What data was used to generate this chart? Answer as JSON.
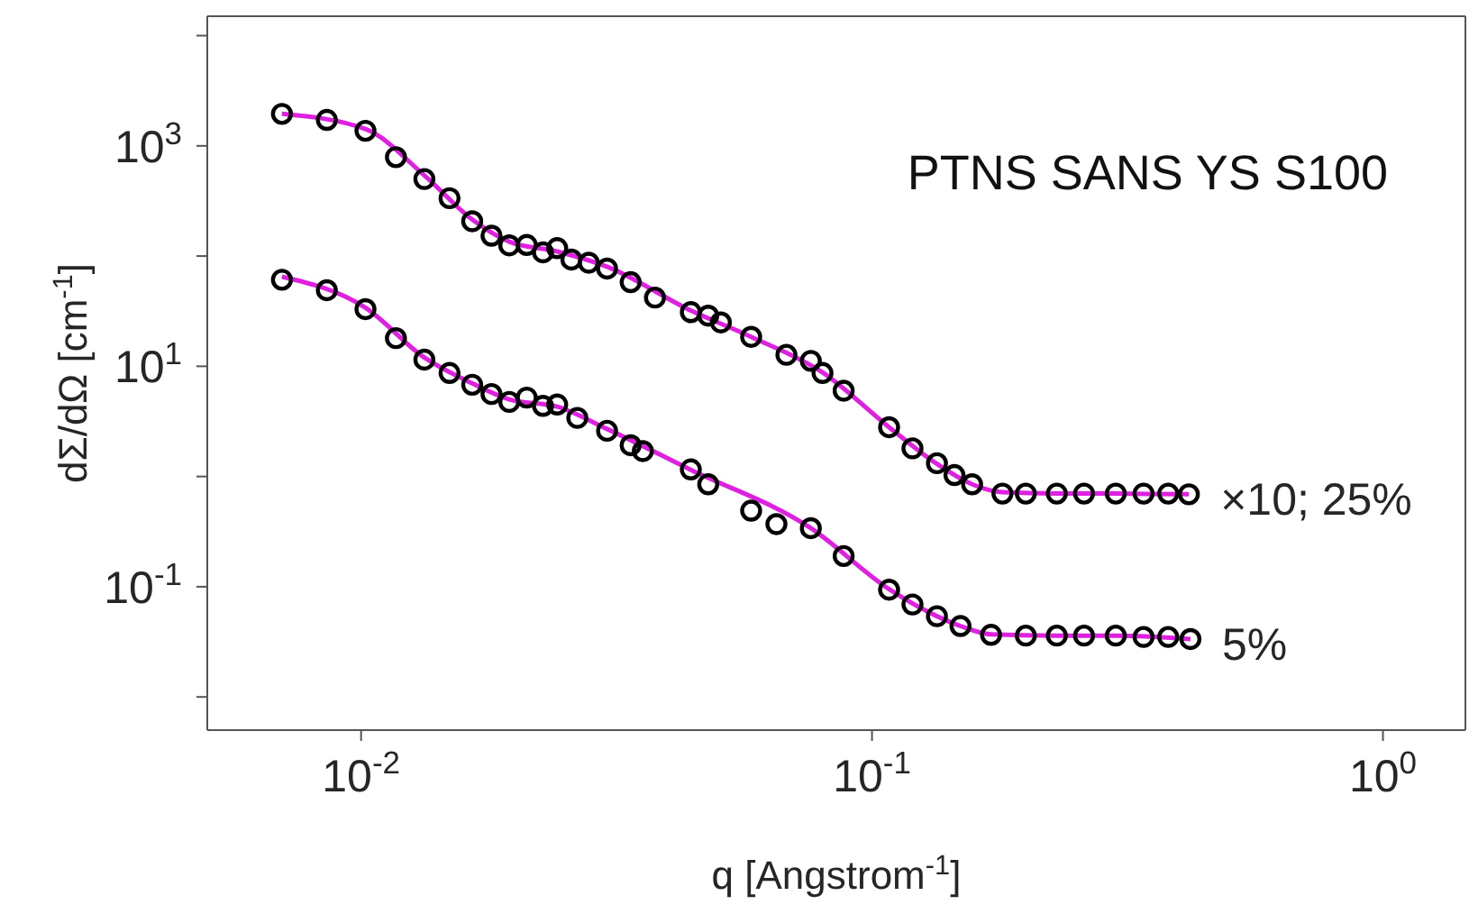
{
  "chart_data": {
    "type": "scatter",
    "title": "PTNS SANS YS S100",
    "xlabel": "q [Angstrom$^{-1}$]",
    "ylabel": "dΣ/dΩ [cm$^{-1}$]",
    "log": "xy",
    "marker": "circle",
    "xlim": [
      0.005,
      1.45
    ],
    "xticks": [
      {
        "value": 0.01,
        "label": "10$^{-2}$"
      },
      {
        "value": 0.1,
        "label": "10$^{-1}$"
      },
      {
        "value": 1,
        "label": "10$^{0}$"
      }
    ],
    "ylim": [
      0.005,
      15000
    ],
    "yticks": [
      {
        "value": 0.01,
        "label": null
      },
      {
        "value": 0.1,
        "label": "10$^{-1}$"
      },
      {
        "value": 1,
        "label": null
      },
      {
        "value": 10,
        "label": "10$^{1}$"
      },
      {
        "value": 100,
        "label": null
      },
      {
        "value": 1000,
        "label": "10$^{3}$"
      },
      {
        "value": 10000,
        "label": null
      }
    ],
    "series": [
      {
        "name": "×10; 25%",
        "color": "#000000",
        "x": [
          0.007,
          0.00857,
          0.0102,
          0.0117,
          0.0133,
          0.0149,
          0.0165,
          0.018,
          0.0195,
          0.0211,
          0.0227,
          0.0242,
          0.0258,
          0.0279,
          0.0303,
          0.0337,
          0.0376,
          0.0442,
          0.0478,
          0.0506,
          0.058,
          0.068,
          0.0759,
          0.08,
          0.088,
          0.108,
          0.12,
          0.134,
          0.145,
          0.157,
          0.18,
          0.2,
          0.23,
          0.26,
          0.3,
          0.34,
          0.38,
          0.417
        ],
        "values": [
          1950,
          1720,
          1370,
          790,
          500,
          335,
          207,
          153,
          125,
          126,
          108,
          118,
          93,
          87,
          77,
          58,
          42,
          31,
          28.8,
          25,
          18.5,
          12.7,
          11.2,
          8.7,
          6,
          2.8,
          1.8,
          1.32,
          1.03,
          0.85,
          0.7,
          0.7,
          0.7,
          0.7,
          0.7,
          0.7,
          0.7,
          0.69
        ]
      },
      {
        "name": "5%",
        "color": "#000000",
        "x": [
          0.007,
          0.00857,
          0.0102,
          0.0117,
          0.0133,
          0.0149,
          0.0165,
          0.018,
          0.0195,
          0.0211,
          0.0227,
          0.0242,
          0.0265,
          0.0303,
          0.0337,
          0.0356,
          0.0442,
          0.0478,
          0.058,
          0.065,
          0.0759,
          0.088,
          0.108,
          0.12,
          0.134,
          0.149,
          0.171,
          0.2,
          0.23,
          0.26,
          0.3,
          0.34,
          0.38,
          0.42
        ],
        "values": [
          61,
          49,
          33,
          18,
          11.5,
          8.7,
          6.8,
          5.6,
          4.75,
          5.2,
          4.37,
          4.5,
          3.4,
          2.6,
          1.92,
          1.7,
          1.16,
          0.85,
          0.49,
          0.37,
          0.34,
          0.19,
          0.094,
          0.069,
          0.054,
          0.044,
          0.0366,
          0.036,
          0.036,
          0.036,
          0.036,
          0.035,
          0.035,
          0.0335
        ]
      },
      {
        "type": "line",
        "marker": "none",
        "color": "#e020e0",
        "x": [
          0.007,
          0.0102,
          0.0133,
          0.0165,
          0.0195,
          0.0242,
          0.0303,
          0.0442,
          0.058,
          0.08,
          0.108,
          0.134,
          0.157,
          0.18,
          0.23,
          0.3,
          0.417
        ],
        "values": [
          1950,
          1420,
          540,
          215,
          135,
          110,
          80,
          32,
          18.5,
          8.8,
          2.8,
          1.3,
          0.85,
          0.72,
          0.7,
          0.7,
          0.69
        ]
      },
      {
        "type": "line",
        "marker": "none",
        "color": "#e020e0",
        "x": [
          0.007,
          0.0102,
          0.0133,
          0.0165,
          0.0195,
          0.0242,
          0.0303,
          0.0442,
          0.0759,
          0.108,
          0.134,
          0.149,
          0.171,
          0.23,
          0.3,
          0.42
        ],
        "values": [
          65,
          34,
          12,
          7,
          5,
          4.3,
          2.7,
          1.15,
          0.34,
          0.095,
          0.054,
          0.044,
          0.037,
          0.036,
          0.036,
          0.0335
        ]
      }
    ]
  }
}
